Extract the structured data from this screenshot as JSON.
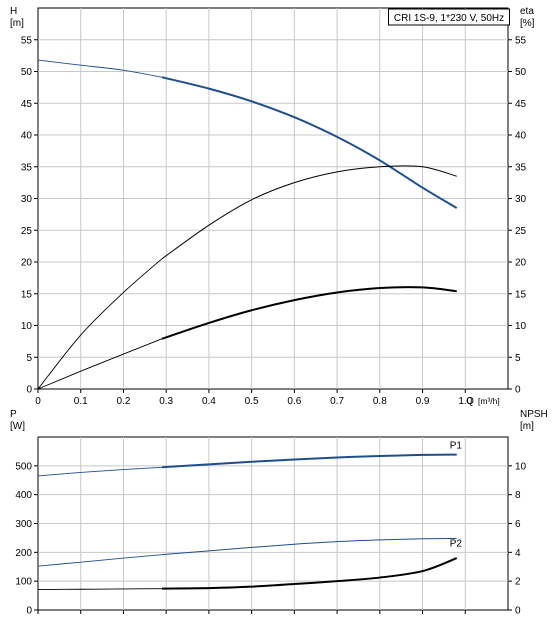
{
  "chart_data": [
    {
      "type": "line",
      "title": "CRI 1S-9, 1*230 V, 50Hz",
      "left_axis": {
        "label": "H",
        "unit": "[m]",
        "ticks": [
          0,
          5,
          10,
          15,
          20,
          25,
          30,
          35,
          40,
          45,
          50,
          55
        ],
        "ylim": [
          0,
          60
        ]
      },
      "right_axis": {
        "label": "eta",
        "unit": "[%]",
        "ticks": [
          0,
          5,
          10,
          15,
          20,
          25,
          30,
          35,
          40,
          45,
          50,
          55
        ],
        "ylim": [
          0,
          60
        ]
      },
      "x_axis": {
        "label": "Q",
        "unit": "[m³/h]",
        "ticks": [
          0,
          0.1,
          0.2,
          0.3,
          0.4,
          0.5,
          0.6,
          0.7,
          0.8,
          0.9,
          1.0
        ],
        "tick_labels": [
          "0",
          "0.1",
          "0.2",
          "0.3",
          "0.4",
          "0.5",
          "0.6",
          "0.7",
          "0.8",
          "0.9",
          "1.0"
        ],
        "xlim": [
          0,
          1.1
        ]
      },
      "grid": true,
      "series": [
        {
          "axis": "left",
          "color": "#1f4e8c",
          "width": 2,
          "x": [
            0,
            0.1,
            0.2,
            0.29,
            0.4,
            0.5,
            0.6,
            0.7,
            0.8,
            0.9,
            0.98
          ],
          "y": [
            51.8,
            51.0,
            50.2,
            49.1,
            47.3,
            45.3,
            42.8,
            39.7,
            36.0,
            31.7,
            28.5
          ],
          "operating_range": [
            0.29,
            0.98
          ]
        },
        {
          "axis": "right",
          "color": "#000000",
          "width": 1,
          "x": [
            0,
            0.1,
            0.2,
            0.29,
            0.4,
            0.5,
            0.6,
            0.7,
            0.8,
            0.9,
            0.98
          ],
          "y": [
            0,
            8.5,
            15.2,
            20.5,
            25.8,
            29.8,
            32.5,
            34.2,
            35.0,
            35.0,
            33.5
          ],
          "operating_range": [
            0.29,
            0.98
          ]
        },
        {
          "axis": "left",
          "color": "#000000",
          "width": 2,
          "x": [
            0,
            0.1,
            0.2,
            0.29,
            0.4,
            0.5,
            0.6,
            0.7,
            0.8,
            0.9,
            0.98
          ],
          "y": [
            0,
            2.8,
            5.5,
            7.9,
            10.4,
            12.4,
            14.0,
            15.2,
            15.9,
            16.0,
            15.4
          ],
          "operating_range": [
            0.29,
            0.98
          ]
        }
      ]
    },
    {
      "type": "line",
      "left_axis": {
        "label": "P",
        "unit": "[W]",
        "ticks": [
          0,
          100,
          200,
          300,
          400,
          500
        ],
        "ylim": [
          0,
          600
        ]
      },
      "right_axis": {
        "label": "NPSH",
        "unit": "[m]",
        "ticks": [
          0,
          2,
          4,
          6,
          8,
          10
        ],
        "ylim": [
          0,
          12
        ]
      },
      "x_axis": {
        "xlim": [
          0,
          1.1
        ]
      },
      "grid": true,
      "series": [
        {
          "name": "P1",
          "axis": "left",
          "color": "#1f4e8c",
          "width": 2,
          "x": [
            0,
            0.1,
            0.2,
            0.29,
            0.4,
            0.5,
            0.6,
            0.7,
            0.8,
            0.9,
            0.98
          ],
          "y": [
            465,
            477,
            487,
            495,
            505,
            514,
            522,
            529,
            534,
            538,
            539
          ],
          "operating_range": [
            0.29,
            0.98
          ]
        },
        {
          "name": "P2",
          "axis": "left",
          "color": "#1f4e8c",
          "width": 1,
          "x": [
            0,
            0.1,
            0.2,
            0.29,
            0.4,
            0.5,
            0.6,
            0.7,
            0.8,
            0.9,
            0.98
          ],
          "y": [
            152,
            166,
            180,
            192,
            205,
            217,
            228,
            237,
            243,
            247,
            248
          ],
          "operating_range": [
            0.29,
            0.98
          ]
        },
        {
          "axis": "right",
          "color": "#000000",
          "width": 2,
          "x": [
            0,
            0.1,
            0.2,
            0.29,
            0.4,
            0.5,
            0.6,
            0.7,
            0.8,
            0.9,
            0.98
          ],
          "y": [
            1.42,
            1.44,
            1.46,
            1.48,
            1.52,
            1.62,
            1.8,
            2.0,
            2.25,
            2.7,
            3.6
          ],
          "operating_range": [
            0.29,
            0.98
          ]
        }
      ]
    }
  ]
}
